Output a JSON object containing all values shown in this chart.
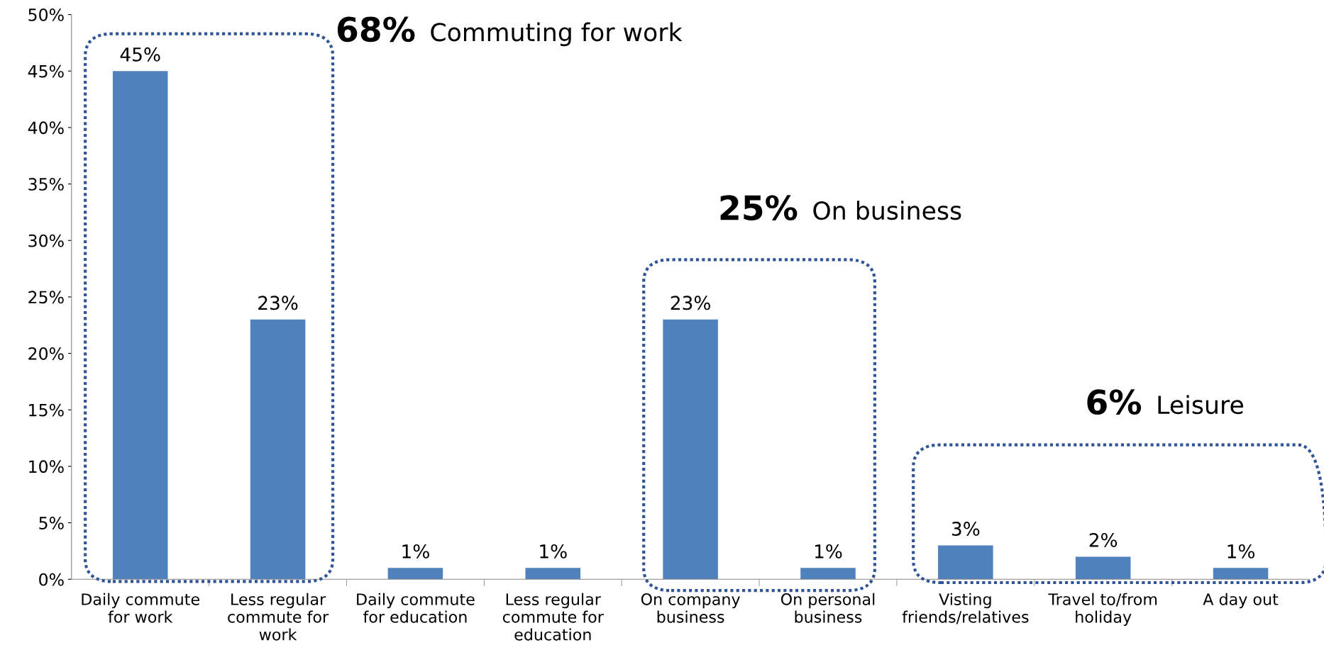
{
  "chart_data": {
    "type": "bar",
    "categories": [
      "Daily commute\nfor work",
      "Less regular\ncommute for\nwork",
      "Daily commute\nfor education",
      "Less regular\ncommute for\neducation",
      "On company\nbusiness",
      "On personal\nbusiness",
      "Visting\nfriends/relatives",
      "Travel to/from\nholiday",
      "A day out"
    ],
    "values": [
      45,
      23,
      1,
      1,
      23,
      1,
      3,
      2,
      1
    ],
    "value_labels": [
      "45%",
      "23%",
      "1%",
      "1%",
      "23%",
      "1%",
      "3%",
      "2%",
      "1%"
    ],
    "color": "#4f81bd",
    "ylim": [
      0,
      50
    ],
    "yticks": [
      {
        "value": 0,
        "label": "0%"
      },
      {
        "value": 5,
        "label": "5%"
      },
      {
        "value": 10,
        "label": "10%"
      },
      {
        "value": 15,
        "label": "15%"
      },
      {
        "value": 20,
        "label": "20%"
      },
      {
        "value": 25,
        "label": "25%"
      },
      {
        "value": 30,
        "label": "30%"
      },
      {
        "value": 35,
        "label": "35%"
      },
      {
        "value": 40,
        "label": "40%"
      },
      {
        "value": 45,
        "label": "45%"
      },
      {
        "value": 50,
        "label": "50%"
      }
    ],
    "annotations": [
      "68% Commuting for work",
      "25% On business",
      "6% Leisure"
    ],
    "grid": false,
    "legend": false
  }
}
